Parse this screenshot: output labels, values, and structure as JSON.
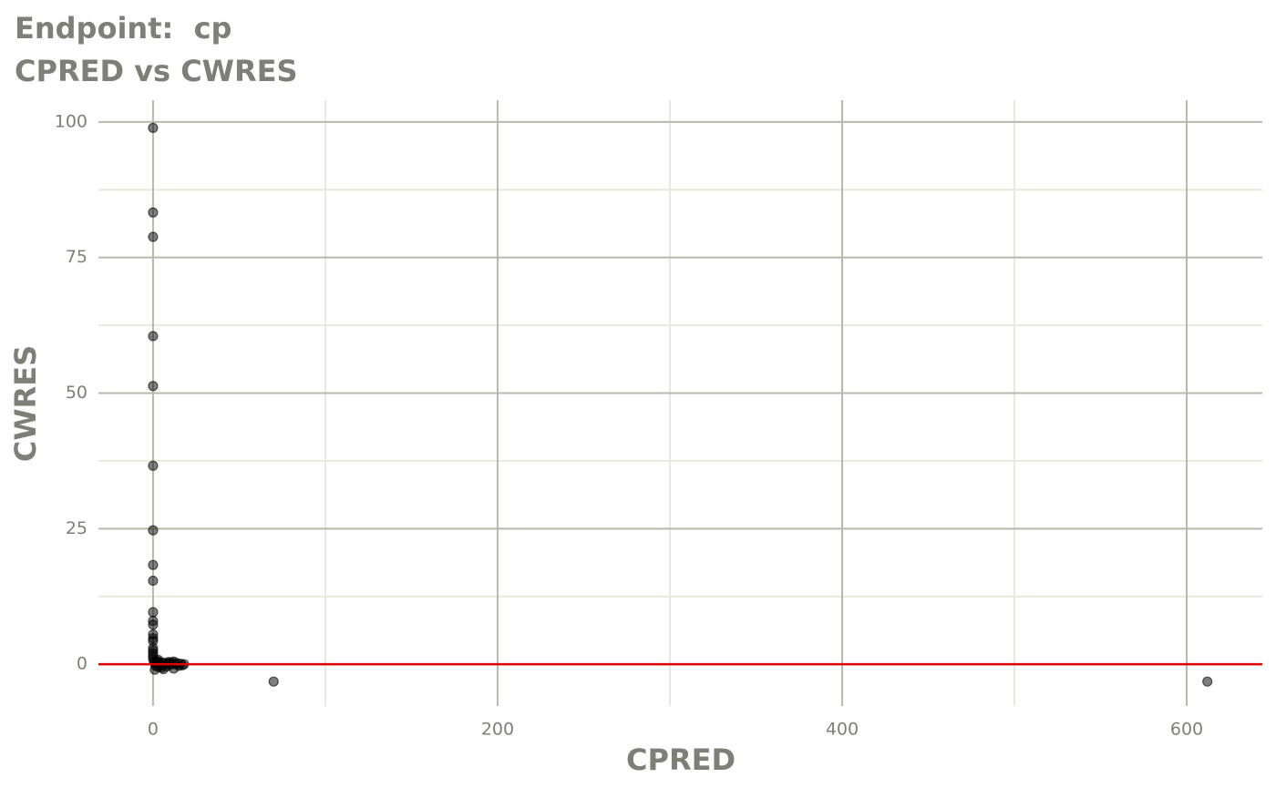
{
  "chart_data": {
    "type": "scatter",
    "title": "Endpoint:  cp",
    "subtitle": "CPRED vs CWRES",
    "x_label": "CPRED",
    "y_label": "CWRES",
    "x": [
      0,
      0,
      0,
      0,
      0,
      0,
      0,
      0,
      0,
      0,
      0,
      0,
      0,
      0,
      0,
      0,
      0,
      0,
      0,
      0,
      0.5,
      1,
      1.5,
      2,
      2.5,
      3,
      3.5,
      4,
      5,
      6,
      6,
      7,
      8,
      9,
      10,
      11,
      12,
      13,
      14,
      15,
      16,
      17,
      18,
      1,
      3,
      5,
      9,
      12,
      70,
      612
    ],
    "y": [
      98.9,
      83.3,
      78.8,
      60.5,
      51.3,
      36.6,
      24.7,
      18.3,
      15.4,
      9.6,
      8.0,
      7.3,
      5.5,
      4.8,
      4.3,
      3.0,
      2.5,
      2.0,
      1.5,
      1.0,
      0.5,
      0.2,
      -0.3,
      0.6,
      0.1,
      -0.5,
      0.4,
      0.0,
      -0.2,
      0.3,
      -0.9,
      0.1,
      -0.4,
      0.2,
      -0.1,
      0.3,
      -0.8,
      0.0,
      0.2,
      -0.3,
      0.1,
      -0.2,
      0.0,
      -1.0,
      0.8,
      -0.6,
      0.4,
      0.5,
      -3.2,
      -3.2
    ],
    "color": "#000000",
    "reference_line_y": 0,
    "reference_line_color": "#e00000",
    "xlim": [
      -31.7,
      643.9
    ],
    "ylim": [
      -7.7,
      104.0
    ],
    "xticks": [
      0,
      200,
      400,
      600
    ],
    "yticks": [
      0,
      25,
      50,
      75,
      100
    ],
    "xminorticks": [
      100,
      300,
      500
    ],
    "yminorticks": [
      12.5,
      37.5,
      62.5,
      87.5
    ],
    "grid": true
  }
}
